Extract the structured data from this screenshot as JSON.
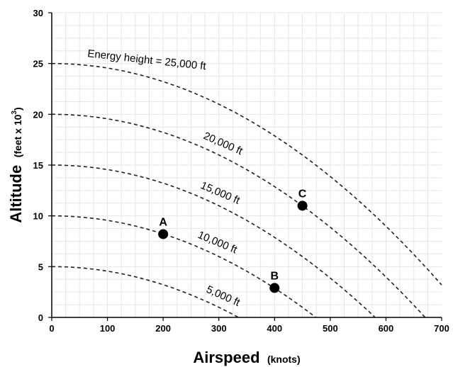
{
  "chart_data": {
    "type": "line",
    "xlabel": "Airspeed",
    "xunit": "(knots)",
    "ylabel": "Altitude",
    "yunit_prefix": "(feet x 10",
    "yunit_sup": "3",
    "yunit_suffix": ")",
    "xlim": [
      0,
      700
    ],
    "ylim": [
      0,
      30
    ],
    "x_ticks": [
      "0",
      "100",
      "200",
      "300",
      "400",
      "500",
      "600",
      "700"
    ],
    "y_ticks": [
      "0",
      "5",
      "10",
      "15",
      "20",
      "25",
      "30"
    ],
    "grid": true,
    "series": [
      {
        "label": "5,000 ft",
        "energy_height": 5,
        "x": [
          0,
          100,
          200,
          300,
          337
        ],
        "y": [
          5.0,
          4.55,
          3.19,
          0.92,
          0
        ]
      },
      {
        "label": "10,000 ft",
        "energy_height": 10,
        "x": [
          0,
          100,
          200,
          300,
          400,
          476
        ],
        "y": [
          10.0,
          9.55,
          8.19,
          5.92,
          2.74,
          0
        ]
      },
      {
        "label": "15,000 ft",
        "energy_height": 15,
        "x": [
          0,
          100,
          200,
          300,
          400,
          500,
          583
        ],
        "y": [
          15.0,
          14.55,
          13.19,
          10.92,
          7.74,
          3.65,
          0
        ]
      },
      {
        "label": "20,000 ft",
        "energy_height": 20,
        "x": [
          0,
          100,
          200,
          300,
          400,
          500,
          600,
          673
        ],
        "y": [
          20.0,
          19.55,
          18.19,
          15.92,
          12.74,
          8.65,
          3.66,
          0
        ]
      },
      {
        "label": "Energy height = 25,000 ft",
        "energy_height": 25,
        "x": [
          0,
          100,
          200,
          300,
          400,
          500,
          600,
          700
        ],
        "y": [
          25.0,
          24.55,
          23.19,
          20.92,
          17.74,
          13.65,
          8.66,
          2.76
        ]
      }
    ],
    "points": [
      {
        "label": "A",
        "x": 200,
        "y": 8.2
      },
      {
        "label": "B",
        "x": 400,
        "y": 2.9
      },
      {
        "label": "C",
        "x": 450,
        "y": 11.0
      }
    ]
  }
}
